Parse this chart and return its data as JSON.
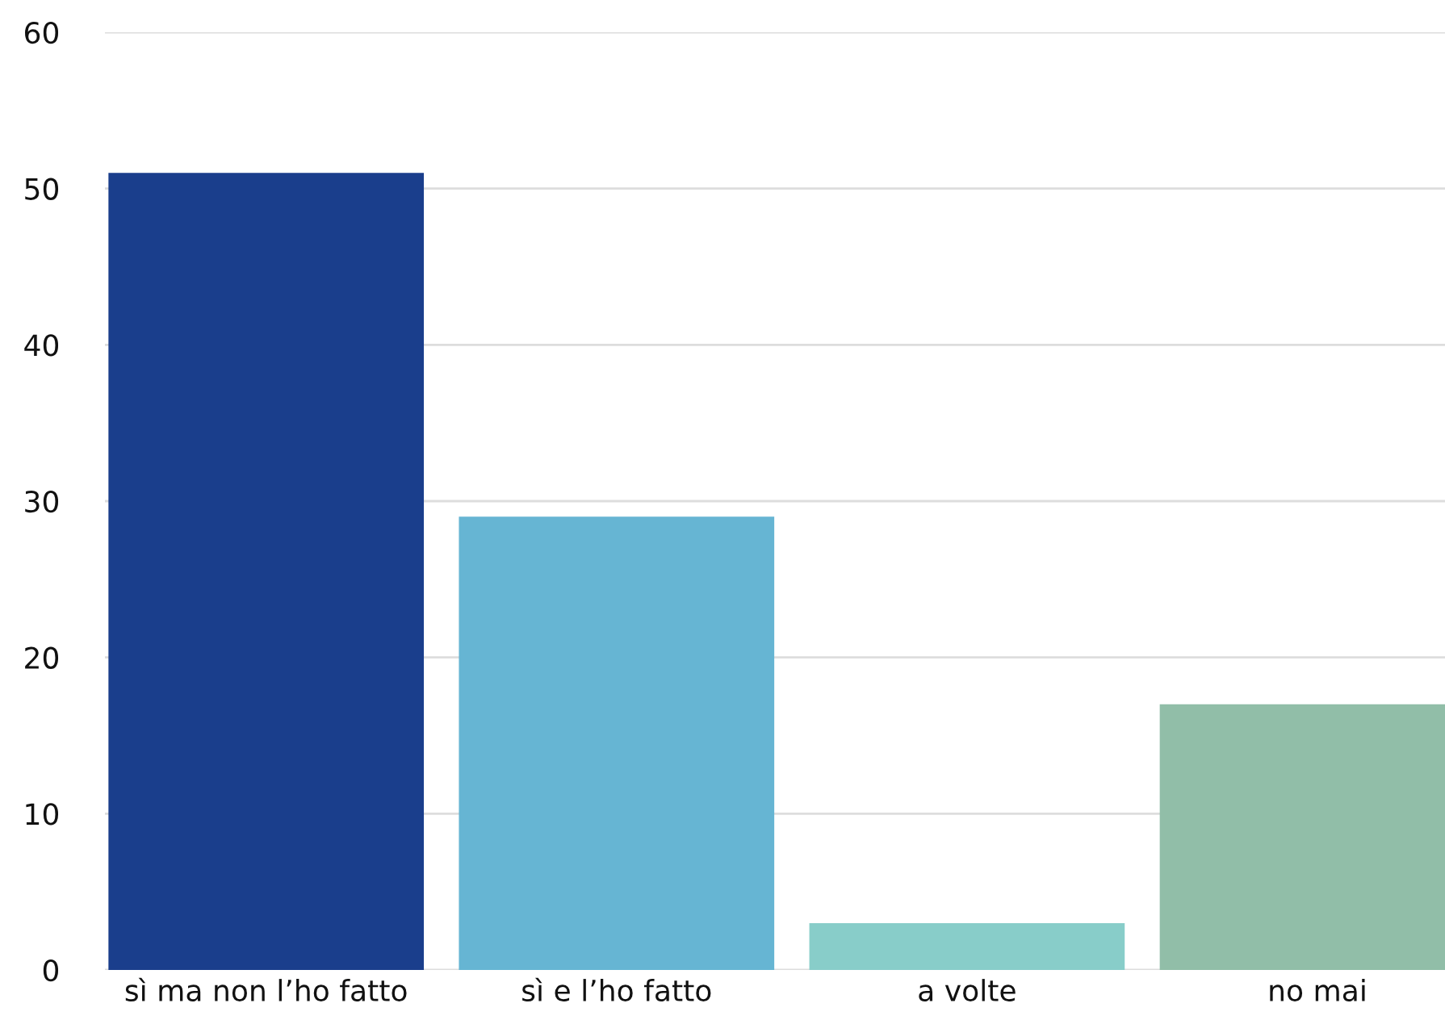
{
  "chart_data": {
    "type": "bar",
    "categories": [
      "sì ma non l’ho fatto",
      "sì e l’ho fatto",
      "a volte",
      "no mai"
    ],
    "values": [
      51,
      29,
      3,
      17
    ],
    "colors": [
      "#1a3e8c",
      "#66b5d3",
      "#88cdc9",
      "#91bea8"
    ],
    "ylim": [
      0,
      60
    ],
    "yticks": [
      0,
      10,
      20,
      30,
      40,
      50,
      60
    ],
    "grid": "y"
  }
}
